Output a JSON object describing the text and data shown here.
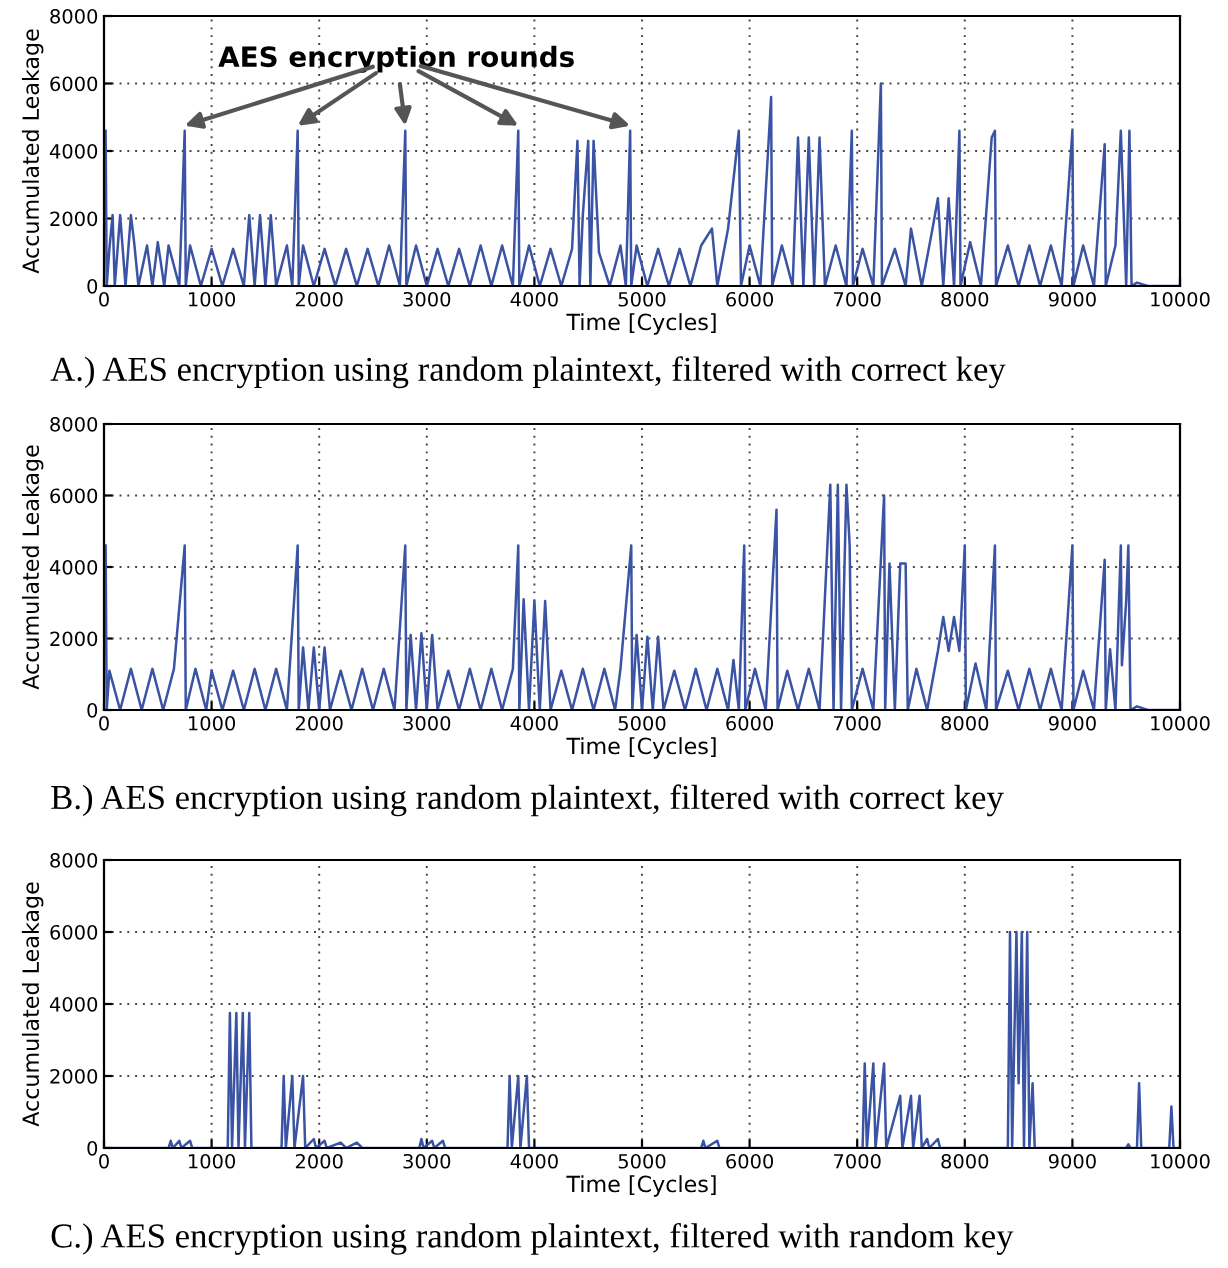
{
  "chart_data": [
    {
      "type": "line",
      "title": "A.) AES encryption using random plaintext, filtered with correct key",
      "xlabel": "Time [Cycles]",
      "ylabel": "Accumulated Leakage",
      "xlim": [
        0,
        10000
      ],
      "ylim": [
        0,
        8000
      ],
      "xticks": [
        0,
        1000,
        2000,
        3000,
        4000,
        5000,
        6000,
        7000,
        8000,
        9000,
        10000
      ],
      "yticks": [
        0,
        2000,
        4000,
        6000,
        8000
      ],
      "grid": true,
      "annotations": [
        {
          "text": "AES encryption rounds",
          "x": 4890,
          "y": 4600
        }
      ],
      "series": [
        {
          "color": "#3a53a4",
          "x": [
            15,
            25,
            50,
            80,
            100,
            150,
            200,
            250,
            280,
            320,
            400,
            450,
            500,
            560,
            600,
            700,
            750,
            760,
            800,
            900,
            1000,
            1100,
            1200,
            1300,
            1350,
            1400,
            1450,
            1500,
            1550,
            1600,
            1700,
            1750,
            1800,
            1810,
            1850,
            1950,
            2050,
            2150,
            2250,
            2350,
            2450,
            2550,
            2650,
            2750,
            2800,
            2810,
            2900,
            3000,
            3100,
            3200,
            3300,
            3400,
            3500,
            3600,
            3700,
            3800,
            3850,
            3860,
            3950,
            4050,
            4150,
            4250,
            4350,
            4400,
            4420,
            4450,
            4500,
            4520,
            4550,
            4600,
            4700,
            4800,
            4850,
            4890,
            4900,
            4950,
            5050,
            5150,
            5250,
            5350,
            5450,
            5550,
            5650,
            5700,
            5800,
            5900,
            5920,
            6000,
            6100,
            6200,
            6210,
            6300,
            6400,
            6450,
            6500,
            6550,
            6600,
            6650,
            6700,
            6800,
            6900,
            6950,
            6960,
            7050,
            7150,
            7220,
            7230,
            7350,
            7450,
            7500,
            7600,
            7700,
            7750,
            7800,
            7850,
            7900,
            7950,
            7960,
            8050,
            8150,
            8250,
            8280,
            8290,
            8400,
            8500,
            8600,
            8700,
            8800,
            8900,
            9000,
            9010,
            9100,
            9200,
            9300,
            9310,
            9400,
            9450,
            9500,
            9530,
            9550,
            9600,
            9700,
            10000
          ],
          "values": [
            4600,
            0,
            1100,
            2100,
            0,
            2100,
            0,
            2100,
            1300,
            0,
            1200,
            0,
            1300,
            0,
            1200,
            0,
            4600,
            0,
            1200,
            0,
            1100,
            0,
            1100,
            0,
            2100,
            0,
            2100,
            0,
            2100,
            0,
            1200,
            0,
            4600,
            0,
            1200,
            0,
            1100,
            0,
            1100,
            0,
            1100,
            0,
            1200,
            0,
            4600,
            0,
            1200,
            0,
            1100,
            0,
            1100,
            0,
            1200,
            0,
            1200,
            0,
            4600,
            0,
            1200,
            0,
            1100,
            0,
            1100,
            4300,
            0,
            2100,
            4300,
            0,
            4300,
            1000,
            0,
            1200,
            0,
            4600,
            0,
            1200,
            0,
            1100,
            0,
            1100,
            0,
            1200,
            1700,
            0,
            1700,
            4600,
            0,
            1200,
            0,
            5600,
            0,
            1200,
            0,
            4400,
            0,
            4400,
            0,
            4400,
            0,
            1200,
            0,
            4600,
            0,
            1100,
            0,
            6000,
            0,
            1100,
            0,
            1700,
            0,
            1700,
            2600,
            0,
            2600,
            0,
            4600,
            0,
            1300,
            0,
            4400,
            4600,
            0,
            1200,
            0,
            1200,
            0,
            1200,
            0,
            4600,
            0,
            1200,
            0,
            4200,
            0,
            1200,
            4600,
            0,
            4600,
            0,
            100,
            0,
            0
          ]
        }
      ]
    },
    {
      "type": "line",
      "title": "B.) AES encryption using random plaintext, filtered with correct key",
      "xlabel": "Time [Cycles]",
      "ylabel": "Accumulated Leakage",
      "xlim": [
        0,
        10000
      ],
      "ylim": [
        0,
        8000
      ],
      "xticks": [
        0,
        1000,
        2000,
        3000,
        4000,
        5000,
        6000,
        7000,
        8000,
        9000,
        10000
      ],
      "yticks": [
        0,
        2000,
        4000,
        6000,
        8000
      ],
      "grid": true,
      "series": [
        {
          "color": "#3a53a4",
          "x": [
            15,
            25,
            50,
            150,
            250,
            350,
            450,
            550,
            650,
            750,
            760,
            850,
            950,
            1000,
            1100,
            1200,
            1300,
            1400,
            1500,
            1600,
            1700,
            1800,
            1810,
            1850,
            1900,
            1950,
            2000,
            2050,
            2100,
            2200,
            2300,
            2400,
            2500,
            2600,
            2700,
            2800,
            2810,
            2850,
            2900,
            2950,
            3000,
            3050,
            3100,
            3200,
            3300,
            3400,
            3500,
            3600,
            3700,
            3800,
            3850,
            3860,
            3900,
            3950,
            4000,
            4050,
            4100,
            4150,
            4250,
            4350,
            4450,
            4550,
            4650,
            4750,
            4800,
            4900,
            4910,
            4950,
            5000,
            5050,
            5100,
            5150,
            5200,
            5300,
            5400,
            5500,
            5600,
            5700,
            5800,
            5850,
            5900,
            5950,
            5960,
            6050,
            6150,
            6250,
            6260,
            6350,
            6450,
            6550,
            6650,
            6750,
            6780,
            6820,
            6850,
            6900,
            6930,
            6950,
            7050,
            7150,
            7250,
            7260,
            7300,
            7350,
            7400,
            7450,
            7470,
            7550,
            7650,
            7750,
            7800,
            7850,
            7900,
            7950,
            8000,
            8010,
            8100,
            8200,
            8280,
            8290,
            8400,
            8500,
            8600,
            8700,
            8800,
            8900,
            9000,
            9010,
            9100,
            9200,
            9300,
            9310,
            9350,
            9400,
            9450,
            9460,
            9500,
            9520,
            9540,
            9600,
            9700,
            10000
          ],
          "values": [
            4600,
            0,
            1100,
            0,
            1150,
            0,
            1150,
            0,
            1150,
            4600,
            0,
            1150,
            0,
            1100,
            0,
            1100,
            0,
            1150,
            0,
            1150,
            0,
            4600,
            0,
            1750,
            0,
            1750,
            0,
            1750,
            0,
            1100,
            0,
            1150,
            0,
            1150,
            0,
            4600,
            0,
            2100,
            0,
            2150,
            0,
            2100,
            0,
            1100,
            0,
            1150,
            0,
            1150,
            0,
            1150,
            4600,
            0,
            3100,
            0,
            3050,
            0,
            3050,
            0,
            1100,
            0,
            1150,
            0,
            1150,
            0,
            1150,
            4600,
            0,
            2100,
            0,
            2050,
            0,
            2050,
            0,
            1100,
            0,
            1150,
            0,
            1150,
            0,
            1400,
            0,
            4600,
            0,
            1150,
            0,
            5600,
            0,
            1100,
            0,
            1150,
            0,
            6300,
            0,
            6300,
            0,
            6300,
            4600,
            0,
            1150,
            0,
            6000,
            0,
            4100,
            0,
            4100,
            4100,
            0,
            1150,
            0,
            1650,
            2600,
            1650,
            2600,
            1650,
            4600,
            0,
            1300,
            0,
            4600,
            0,
            1100,
            0,
            1150,
            0,
            1150,
            0,
            4600,
            0,
            1100,
            0,
            4200,
            0,
            1700,
            0,
            4600,
            1250,
            3050,
            4600,
            0,
            100,
            0,
            0
          ]
        }
      ]
    },
    {
      "type": "line",
      "title": "C.) AES encryption using random plaintext, filtered with random key",
      "xlabel": "Time [Cycles]",
      "ylabel": "Accumulated Leakage",
      "xlim": [
        0,
        10000
      ],
      "ylim": [
        0,
        8000
      ],
      "xticks": [
        0,
        1000,
        2000,
        3000,
        4000,
        5000,
        6000,
        7000,
        8000,
        9000,
        10000
      ],
      "yticks": [
        0,
        2000,
        4000,
        6000,
        8000
      ],
      "grid": true,
      "series": [
        {
          "color": "#3a53a4",
          "x": [
            0,
            600,
            620,
            640,
            700,
            720,
            800,
            820,
            1150,
            1170,
            1190,
            1230,
            1250,
            1290,
            1310,
            1350,
            1370,
            1650,
            1670,
            1690,
            1750,
            1770,
            1850,
            1870,
            1950,
            1970,
            2050,
            2070,
            2200,
            2250,
            2350,
            2400,
            2930,
            2950,
            2970,
            3050,
            3070,
            3150,
            3170,
            3750,
            3770,
            3790,
            3850,
            3870,
            3930,
            3950,
            5550,
            5570,
            5590,
            5700,
            5720,
            7050,
            7070,
            7090,
            7150,
            7170,
            7250,
            7270,
            7400,
            7420,
            7500,
            7520,
            7580,
            7600,
            7650,
            7670,
            7750,
            7770,
            8400,
            8420,
            8440,
            8480,
            8500,
            8530,
            8550,
            8580,
            8600,
            8630,
            8650,
            9500,
            9520,
            9540,
            9600,
            9620,
            9640,
            9900,
            9920,
            9940,
            10000
          ],
          "values": [
            0,
            0,
            200,
            0,
            200,
            0,
            200,
            0,
            0,
            3750,
            0,
            3750,
            0,
            3750,
            0,
            3750,
            0,
            0,
            2000,
            0,
            2000,
            0,
            2000,
            0,
            250,
            0,
            200,
            0,
            150,
            0,
            150,
            0,
            0,
            250,
            0,
            200,
            0,
            200,
            0,
            0,
            2000,
            0,
            2000,
            0,
            2000,
            0,
            0,
            200,
            0,
            200,
            0,
            0,
            2350,
            0,
            2350,
            0,
            2350,
            0,
            1450,
            0,
            1450,
            0,
            1450,
            0,
            250,
            0,
            250,
            0,
            0,
            6000,
            0,
            6000,
            1800,
            6000,
            0,
            6000,
            0,
            1800,
            0,
            0,
            100,
            0,
            0,
            1800,
            0,
            0,
            1150,
            0,
            0
          ]
        }
      ]
    }
  ]
}
